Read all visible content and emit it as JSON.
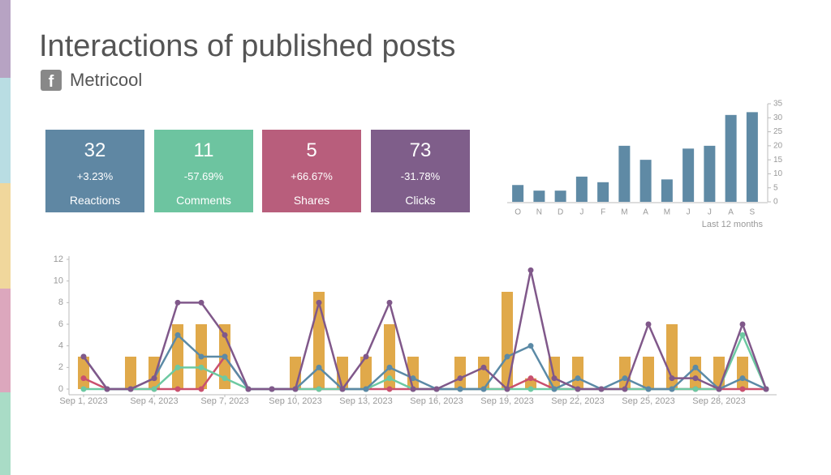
{
  "header": {
    "title": "Interactions of published posts",
    "source": "Metricool"
  },
  "cards": [
    {
      "value": 32,
      "change": "+3.23%",
      "label": "Reactions",
      "color": "#5f87a3"
    },
    {
      "value": 11,
      "change": "-57.69%",
      "label": "Comments",
      "color": "#6dc4a0"
    },
    {
      "value": 5,
      "change": "+66.67%",
      "label": "Shares",
      "color": "#b85e7c"
    },
    {
      "value": 73,
      "change": "-31.78%",
      "label": "Clicks",
      "color": "#7f5e8a"
    }
  ],
  "chart_data": [
    {
      "type": "bar",
      "xlabel": "Last 12 months",
      "categories": [
        "O",
        "N",
        "D",
        "J",
        "F",
        "M",
        "A",
        "M",
        "J",
        "J",
        "A",
        "S"
      ],
      "values": [
        6,
        4,
        4,
        9,
        7,
        20,
        15,
        8,
        19,
        20,
        31,
        32
      ],
      "color": "#5f8aa5",
      "ylim": [
        0,
        35
      ],
      "yticks": [
        0,
        5,
        10,
        15,
        20,
        25,
        30,
        35
      ]
    },
    {
      "type": "combo",
      "categories": [
        "Sep 1, 2023",
        null,
        null,
        "Sep 4, 2023",
        null,
        null,
        "Sep 7, 2023",
        null,
        null,
        "Sep 10, 2023",
        null,
        null,
        "Sep 13, 2023",
        null,
        null,
        "Sep 16, 2023",
        null,
        null,
        "Sep 19, 2023",
        null,
        null,
        "Sep 22, 2023",
        null,
        null,
        "Sep 25, 2023",
        null,
        null,
        "Sep 28, 2023",
        null,
        null
      ],
      "ylim": [
        0,
        12
      ],
      "yticks": [
        0,
        2,
        4,
        6,
        8,
        10,
        12
      ],
      "series": [
        {
          "type": "bar",
          "color": "#e0a94a",
          "values": [
            3,
            0,
            3,
            3,
            6,
            6,
            6,
            0,
            0,
            3,
            9,
            3,
            3,
            6,
            3,
            0,
            3,
            3,
            9,
            1,
            3,
            3,
            0,
            3,
            3,
            6,
            3,
            3,
            3,
            0
          ]
        },
        {
          "type": "line",
          "color": "#c9506e",
          "values": [
            1,
            0,
            0,
            0,
            0,
            0,
            3,
            0,
            0,
            0,
            0,
            0,
            0,
            0,
            0,
            0,
            0,
            0,
            0,
            1,
            0,
            0,
            0,
            0,
            0,
            0,
            0,
            0,
            0,
            0
          ]
        },
        {
          "type": "line",
          "color": "#6dc9a2",
          "values": [
            0,
            0,
            0,
            0,
            2,
            2,
            1,
            0,
            0,
            0,
            0,
            0,
            0,
            1,
            0,
            0,
            0,
            0,
            0,
            0,
            0,
            0,
            0,
            0,
            0,
            0,
            0,
            0,
            5,
            0
          ]
        },
        {
          "type": "line",
          "color": "#5b8aa6",
          "values": [
            3,
            0,
            0,
            1,
            5,
            3,
            3,
            0,
            0,
            0,
            2,
            0,
            0,
            2,
            1,
            0,
            0,
            0,
            3,
            4,
            0,
            1,
            0,
            1,
            0,
            0,
            2,
            0,
            1,
            0
          ]
        },
        {
          "type": "line",
          "color": "#80588a",
          "values": [
            3,
            0,
            0,
            1,
            8,
            8,
            5,
            0,
            0,
            0,
            8,
            0,
            3,
            8,
            0,
            0,
            1,
            2,
            0,
            11,
            1,
            0,
            0,
            0,
            6,
            1,
            1,
            0,
            6,
            0
          ]
        }
      ]
    }
  ]
}
